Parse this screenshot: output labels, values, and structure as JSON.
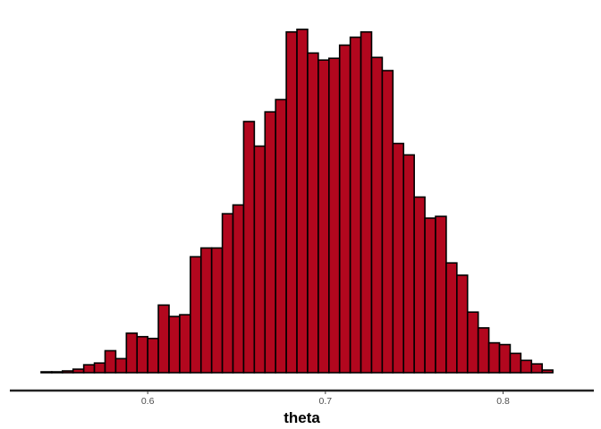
{
  "chart_data": {
    "type": "bar",
    "title": "",
    "xlabel": "theta",
    "ylabel": "",
    "xlim": [
      0.537,
      0.837
    ],
    "ylim": [
      0,
      402
    ],
    "grid": false,
    "x_ticks": [
      "0.6",
      "0.7",
      "0.8"
    ],
    "bar_color": "#b2071e",
    "bar_edge_color": "#000000",
    "bin_width": 0.006,
    "bins_start": [
      0.54,
      0.546,
      0.552,
      0.558,
      0.564,
      0.57,
      0.576,
      0.582,
      0.588,
      0.594,
      0.6,
      0.606,
      0.612,
      0.618,
      0.624,
      0.63,
      0.636,
      0.642,
      0.648,
      0.654,
      0.66,
      0.666,
      0.672,
      0.678,
      0.684,
      0.69,
      0.696,
      0.702,
      0.708,
      0.714,
      0.72,
      0.726,
      0.732,
      0.738,
      0.744,
      0.75,
      0.756,
      0.762,
      0.768,
      0.774,
      0.78,
      0.786,
      0.792,
      0.798,
      0.804,
      0.81,
      0.816,
      0.822,
      0.828
    ],
    "values": [
      1,
      1,
      2,
      4,
      9,
      11,
      25,
      16,
      45,
      41,
      39,
      77,
      64,
      66,
      132,
      142,
      142,
      181,
      191,
      286,
      258,
      297,
      311,
      388,
      391,
      364,
      356,
      358,
      373,
      382,
      388,
      359,
      344,
      261,
      248,
      200,
      176,
      178,
      125,
      111,
      69,
      51,
      34,
      32,
      22,
      14,
      10,
      3,
      0
    ]
  }
}
